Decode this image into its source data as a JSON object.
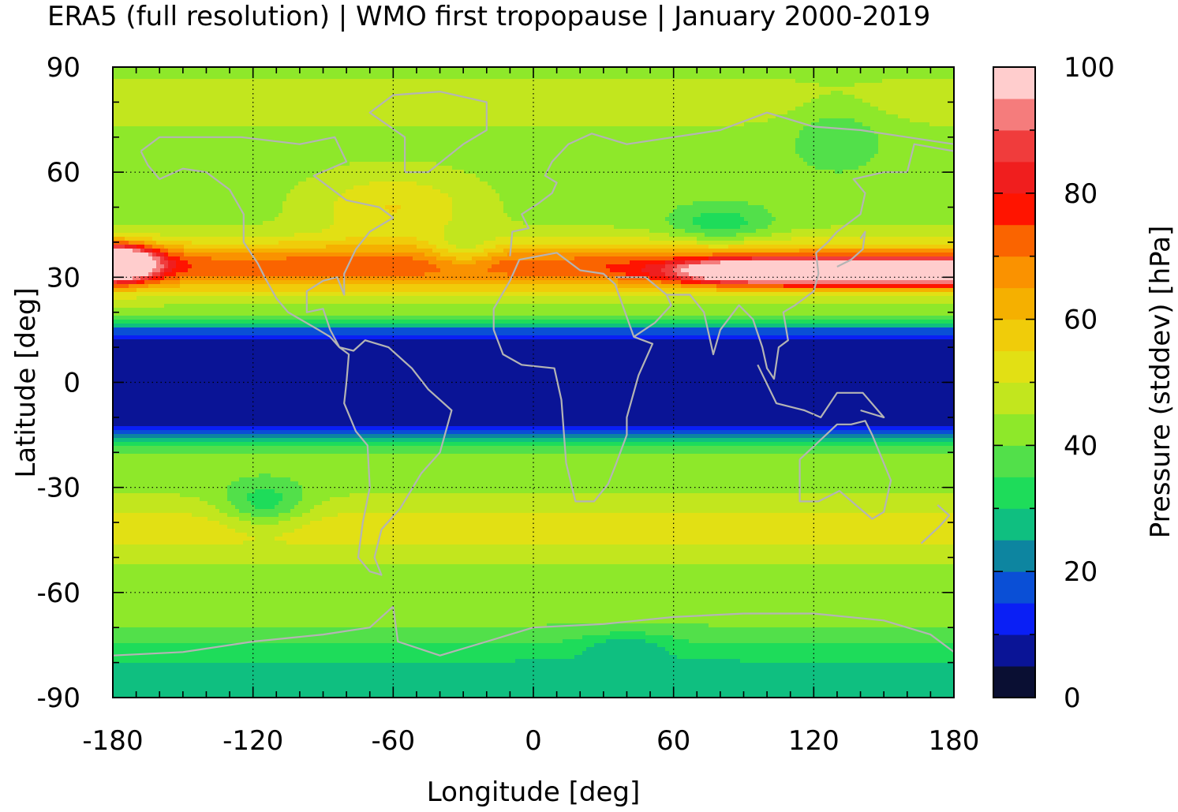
{
  "chart_data": {
    "type": "heatmap",
    "title": "ERA5 (full resolution) | WMO first tropopause | January 2000-2019",
    "xlabel": "Longitude [deg]",
    "ylabel": "Latitude [deg]",
    "xlim": [
      -180,
      180
    ],
    "ylim": [
      -90,
      90
    ],
    "xticks": [
      -180,
      -120,
      -60,
      0,
      60,
      120,
      180
    ],
    "yticks": [
      90,
      60,
      30,
      0,
      -30,
      -60,
      -90
    ],
    "grid": true,
    "colorbar": {
      "label": "Pressure (stddev) [hPa]",
      "range": [
        0,
        100
      ],
      "ticks": [
        0,
        20,
        40,
        60,
        80,
        100
      ],
      "levels": [
        {
          "from": 0,
          "to": 5,
          "color": "#0a0f33"
        },
        {
          "from": 5,
          "to": 10,
          "color": "#0a1496"
        },
        {
          "from": 10,
          "to": 15,
          "color": "#0a1ff5"
        },
        {
          "from": 15,
          "to": 20,
          "color": "#0a4fd6"
        },
        {
          "from": 20,
          "to": 25,
          "color": "#0d85a0"
        },
        {
          "from": 25,
          "to": 30,
          "color": "#0fbf80"
        },
        {
          "from": 30,
          "to": 35,
          "color": "#1edc5a"
        },
        {
          "from": 35,
          "to": 40,
          "color": "#52e04a"
        },
        {
          "from": 40,
          "to": 45,
          "color": "#8ee82a"
        },
        {
          "from": 45,
          "to": 50,
          "color": "#c2e61e"
        },
        {
          "from": 50,
          "to": 55,
          "color": "#e2e014"
        },
        {
          "from": 55,
          "to": 60,
          "color": "#f0cc0a"
        },
        {
          "from": 60,
          "to": 65,
          "color": "#f5b000"
        },
        {
          "from": 65,
          "to": 70,
          "color": "#fa9200"
        },
        {
          "from": 70,
          "to": 75,
          "color": "#fa6400"
        },
        {
          "from": 75,
          "to": 80,
          "color": "#ff1400"
        },
        {
          "from": 80,
          "to": 85,
          "color": "#f01e1e"
        },
        {
          "from": 85,
          "to": 90,
          "color": "#f03c3c"
        },
        {
          "from": 90,
          "to": 95,
          "color": "#f57c7c"
        },
        {
          "from": 95,
          "to": 100,
          "color": "#ffcdcd"
        }
      ]
    },
    "coastlines_color": "#b4b4b4"
  }
}
